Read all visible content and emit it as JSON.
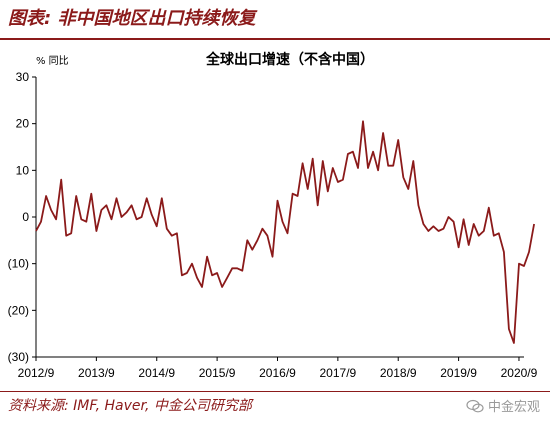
{
  "figure": {
    "heading": "图表: 非中国地区出口持续恢复",
    "source": "资料来源: IMF, Haver, 中金公司研究部",
    "watermark": "中金宏观"
  },
  "colors": {
    "line": "#8b1a1a",
    "heading": "#8b1a1a"
  },
  "chart_data": {
    "type": "line",
    "title": "全球出口增速（不含中国）",
    "ylabel": "% 同比",
    "ylim": [
      -30,
      30
    ],
    "yticks": [
      30,
      20,
      10,
      0,
      -10,
      -20,
      -30
    ],
    "ytick_labels": [
      "30",
      "20",
      "10",
      "0",
      "(10)",
      "(20)",
      "(30)"
    ],
    "xlim": [
      "2012-09",
      "2020-10"
    ],
    "xtick_labels": [
      "2012/9",
      "2013/9",
      "2014/9",
      "2015/9",
      "2016/9",
      "2017/9",
      "2018/9",
      "2019/9",
      "2020/9"
    ],
    "grid": false,
    "series": [
      {
        "start": "2012-09",
        "frequency": "monthly",
        "values": [
          -3.0,
          -1.0,
          4.5,
          1.5,
          -0.5,
          8.0,
          -4.0,
          -3.5,
          4.5,
          -0.5,
          -1.0,
          5.0,
          -3.0,
          1.5,
          2.5,
          -0.5,
          4.0,
          0.0,
          1.0,
          2.5,
          -0.5,
          0.0,
          4.0,
          0.5,
          -2.0,
          4.0,
          -2.5,
          -4.0,
          -3.5,
          -12.5,
          -12.0,
          -10.0,
          -13.0,
          -15.0,
          -8.5,
          -12.5,
          -12.0,
          -15.0,
          -13.0,
          -11.0,
          -11.0,
          -11.5,
          -5.0,
          -7.0,
          -5.0,
          -2.5,
          -4.0,
          -8.5,
          3.5,
          -1.0,
          -3.5,
          5.0,
          4.5,
          11.5,
          6.0,
          12.5,
          2.5,
          12.0,
          5.5,
          10.5,
          7.5,
          8.0,
          13.5,
          14.0,
          10.5,
          20.5,
          10.5,
          14.0,
          10.0,
          18.0,
          11.0,
          11.0,
          16.5,
          8.5,
          6.0,
          12.0,
          2.5,
          -1.5,
          -3.0,
          -2.0,
          -3.0,
          -2.5,
          0.0,
          -1.0,
          -6.5,
          -0.5,
          -6.0,
          -1.5,
          -4.0,
          -3.0,
          2.0,
          -4.0,
          -3.5,
          -7.5,
          -24.0,
          -27.0,
          -10.0,
          -10.5,
          -7.5,
          -1.5
        ]
      }
    ]
  }
}
